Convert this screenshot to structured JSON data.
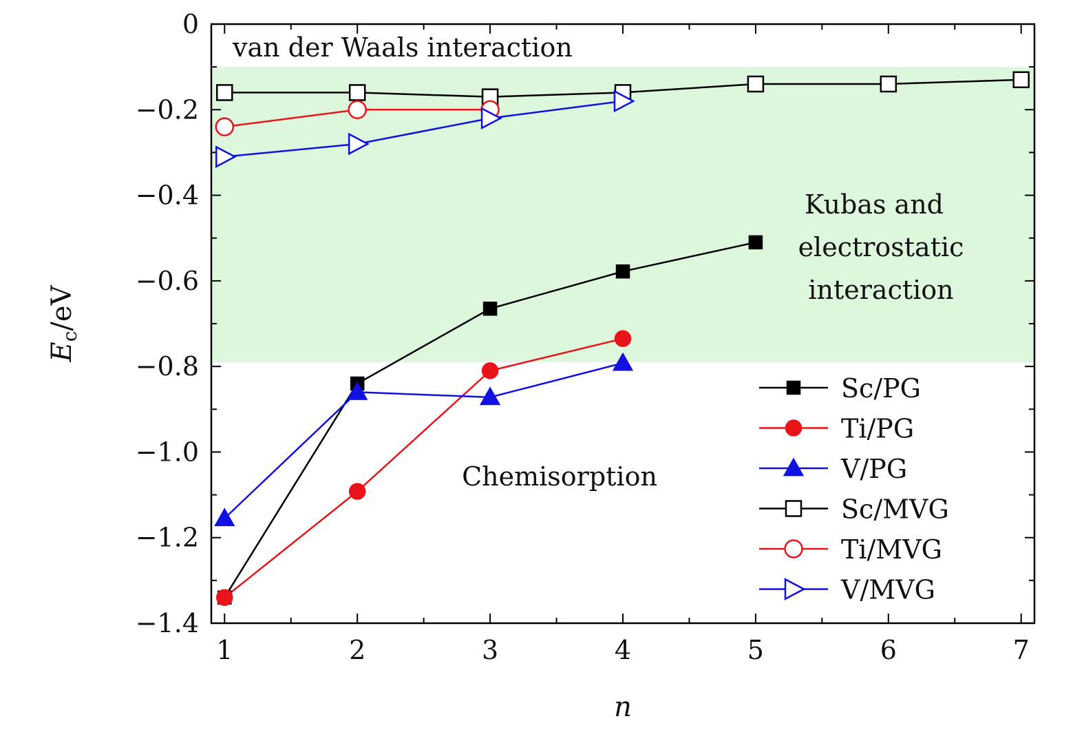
{
  "chart_data": {
    "type": "line",
    "xlabel": "n",
    "ylabel": {
      "main": "E",
      "sub": "c",
      "unit": "/eV"
    },
    "xlim": [
      0.9,
      7.1
    ],
    "ylim": [
      -1.4,
      0
    ],
    "xticks": [
      1,
      2,
      3,
      4,
      5,
      6,
      7
    ],
    "yticks": [
      0,
      -0.2,
      -0.4,
      -0.6,
      -0.8,
      -1.0,
      -1.2,
      -1.4
    ],
    "ytick_labels": [
      "0",
      "−0.2",
      "−0.4",
      "−0.6",
      "−0.8",
      "−1.0",
      "−1.2",
      "−1.4"
    ],
    "grid": false,
    "legend_position": "bottom-right",
    "shaded_band": {
      "y_from": -0.1,
      "y_to": -0.79,
      "color": "#dcf7dc"
    },
    "annotations": {
      "top": "van der Waals interaction",
      "middle": [
        "Kubas and",
        "electrostatic",
        "interaction"
      ],
      "bottom": "Chemisorption"
    },
    "series": [
      {
        "name": "Sc/PG",
        "color": "#000000",
        "marker": "square",
        "filled": true,
        "x": [
          1,
          2,
          3,
          4,
          5
        ],
        "y": [
          -1.34,
          -0.84,
          -0.665,
          -0.578,
          -0.51
        ]
      },
      {
        "name": "Ti/PG",
        "color": "#e8141a",
        "marker": "circle",
        "filled": true,
        "x": [
          1,
          2,
          3,
          4
        ],
        "y": [
          -1.34,
          -1.092,
          -0.81,
          -0.735
        ]
      },
      {
        "name": "V/PG",
        "color": "#1010e0",
        "marker": "triangle-up",
        "filled": true,
        "x": [
          1,
          2,
          3,
          4
        ],
        "y": [
          -1.155,
          -0.86,
          -0.872,
          -0.792
        ]
      },
      {
        "name": "Sc/MVG",
        "color": "#000000",
        "marker": "square",
        "filled": false,
        "x": [
          1,
          2,
          3,
          4,
          5,
          6,
          7
        ],
        "y": [
          -0.16,
          -0.16,
          -0.17,
          -0.16,
          -0.14,
          -0.14,
          -0.13
        ]
      },
      {
        "name": "Ti/MVG",
        "color": "#e8141a",
        "marker": "circle",
        "filled": false,
        "x": [
          1,
          2,
          3
        ],
        "y": [
          -0.24,
          -0.2,
          -0.2
        ]
      },
      {
        "name": "V/MVG",
        "color": "#1010e0",
        "marker": "triangle-right",
        "filled": false,
        "x": [
          1,
          2,
          3,
          4
        ],
        "y": [
          -0.31,
          -0.28,
          -0.22,
          -0.18
        ]
      }
    ]
  }
}
